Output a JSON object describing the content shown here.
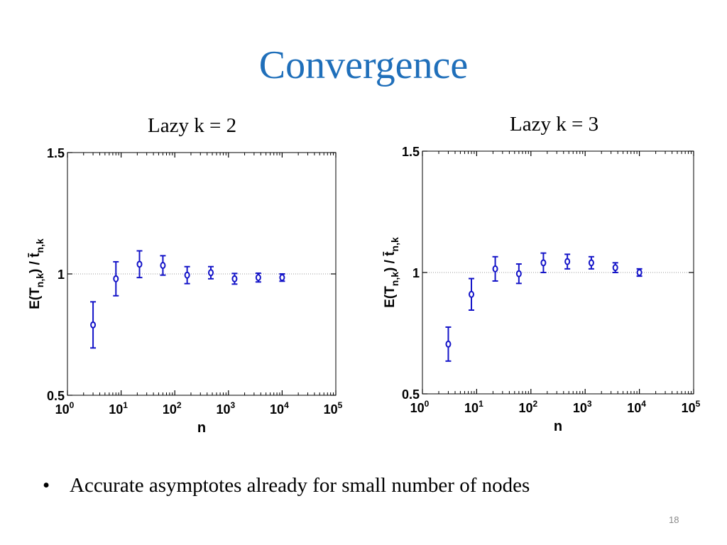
{
  "title": "Convergence",
  "bullet": "Accurate asymptotes already for small number of nodes",
  "page_number": "18",
  "colors": {
    "title": "#1f6fba",
    "marker": "#1414c8",
    "axis": "#000000",
    "grid": "#9a9a9a"
  },
  "chart_data": [
    {
      "type": "scatter",
      "title": "Lazy k = 2",
      "xlabel": "n",
      "ylabel": "E(T_{n,k}) / t̄_{n,k}",
      "xscale": "log",
      "xlim": [
        1,
        100000
      ],
      "ylim": [
        0.5,
        1.5
      ],
      "xticks": [
        1,
        10,
        100,
        1000,
        10000,
        100000
      ],
      "yticks": [
        0.5,
        1,
        1.5
      ],
      "ytick_labels": [
        "0.5",
        "1",
        "1.5"
      ],
      "reference_line_y": 1,
      "grid": false,
      "series": [
        {
          "x": [
            3,
            8,
            22,
            60,
            170,
            470,
            1300,
            3600,
            10000
          ],
          "y": [
            0.79,
            0.98,
            1.04,
            1.035,
            0.995,
            1.005,
            0.98,
            0.985,
            0.985
          ],
          "err": [
            0.095,
            0.07,
            0.055,
            0.04,
            0.035,
            0.025,
            0.022,
            0.018,
            0.015
          ]
        }
      ]
    },
    {
      "type": "scatter",
      "title": "Lazy k = 3",
      "xlabel": "n",
      "ylabel": "E(T_{n,k}) / t̄_{n,k}",
      "xscale": "log",
      "xlim": [
        1,
        100000
      ],
      "ylim": [
        0.5,
        1.5
      ],
      "xticks": [
        1,
        10,
        100,
        1000,
        10000,
        100000
      ],
      "yticks": [
        0.5,
        1,
        1.5
      ],
      "ytick_labels": [
        "0.5",
        "1",
        "1.5"
      ],
      "reference_line_y": 1,
      "grid": false,
      "series": [
        {
          "x": [
            3,
            8,
            22,
            60,
            170,
            470,
            1300,
            3600,
            10000
          ],
          "y": [
            0.705,
            0.91,
            1.015,
            0.995,
            1.04,
            1.045,
            1.04,
            1.02,
            1.0
          ],
          "err": [
            0.07,
            0.065,
            0.05,
            0.04,
            0.04,
            0.03,
            0.025,
            0.02,
            0.015
          ]
        }
      ]
    }
  ]
}
